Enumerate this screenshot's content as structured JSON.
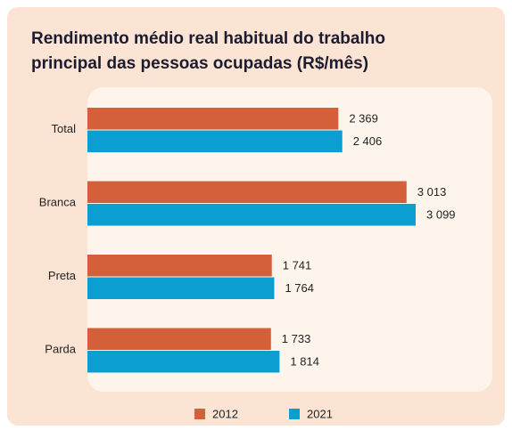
{
  "chart_data": {
    "type": "bar",
    "orientation": "horizontal",
    "title": "Rendimento médio real habitual do trabalho principal das pessoas ocupadas (R$/mês)",
    "categories": [
      "Total",
      "Branca",
      "Preta",
      "Parda"
    ],
    "series": [
      {
        "name": "2012",
        "color": "#d4603a",
        "values": [
          2369,
          3013,
          1741,
          1733
        ],
        "value_labels": [
          "2 369",
          "3 013",
          "1 741",
          "1 733"
        ]
      },
      {
        "name": "2021",
        "color": "#0a9fd0",
        "values": [
          2406,
          3099,
          1764,
          1814
        ],
        "value_labels": [
          "2 406",
          "3 099",
          "1 764",
          "1 814"
        ]
      }
    ]
  }
}
